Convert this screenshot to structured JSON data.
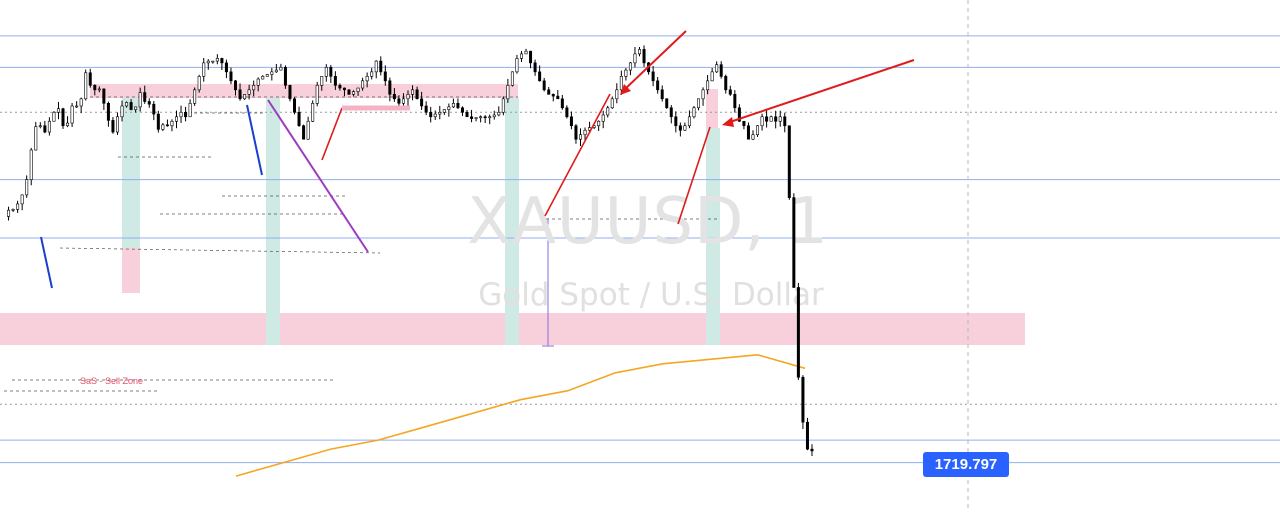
{
  "watermark": {
    "symbol": "XAUUSD, 1",
    "description": "Gold Spot / U.S. Dollar"
  },
  "annotations": {
    "zone_label": "Sell Zone",
    "zone_prefix": "SaS"
  },
  "last_price": "1719.797",
  "colors": {
    "candle": "#000000",
    "level_line": "#90aff0",
    "supply_zone": "#f8d0dc",
    "vertical_band": "#cfe9e4",
    "ma_line": "#f5a623",
    "arrow": "#e01b1b",
    "price_tag": "#2962ff",
    "diag_purple": "#9c3cc0",
    "diag_blue": "#1a3fcf"
  },
  "chart_data": {
    "type": "candlestick",
    "symbol": "XAUUSD",
    "timeframe": "1",
    "title": "XAUUSD, 1",
    "subtitle": "Gold Spot / U.S. Dollar",
    "last_price": 1719.797,
    "price_path": [
      1745.9,
      1746.6,
      1746.7,
      1747.3,
      1748.3,
      1750.0,
      1753.3,
      1755.9,
      1756.0,
      1755.3,
      1756.5,
      1757.5,
      1757.9,
      1756.0,
      1756.3,
      1758.2,
      1758.2,
      1759.0,
      1761.9,
      1760.5,
      1760.0,
      1760.1,
      1758.5,
      1756.6,
      1755.3,
      1757.0,
      1758.2,
      1758.6,
      1757.8,
      1758.1,
      1759.7,
      1758.7,
      1758.4,
      1757.3,
      1755.6,
      1756.1,
      1756.0,
      1756.5,
      1757.0,
      1757.5,
      1757.0,
      1758.5,
      1760.0,
      1761.5,
      1763.0,
      1763.2,
      1763.2,
      1763.5,
      1763.0,
      1762.0,
      1761.0,
      1760.0,
      1759.0,
      1759.5,
      1760.0,
      1760.5,
      1761.2,
      1761.5,
      1761.7,
      1762.0,
      1762.2,
      1762.5,
      1760.5,
      1759.0,
      1757.5,
      1756.0,
      1754.5,
      1756.5,
      1758.5,
      1760.5,
      1761.5,
      1762.5,
      1761.5,
      1760.5,
      1760.2,
      1760.0,
      1759.5,
      1759.8,
      1760.2,
      1761.0,
      1761.5,
      1762.0,
      1763.2,
      1762.0,
      1761.0,
      1759.5,
      1759.0,
      1758.5,
      1759.0,
      1759.5,
      1760.0,
      1759.0,
      1758.2,
      1757.5,
      1757.0,
      1757.3,
      1757.5,
      1757.8,
      1758.1,
      1758.5,
      1758.0,
      1757.5,
      1757.0,
      1756.8,
      1756.9,
      1757.0,
      1756.9,
      1757.0,
      1757.2,
      1757.5,
      1759.0,
      1760.5,
      1762.0,
      1763.5,
      1764.0,
      1764.3,
      1763.0,
      1762.0,
      1761.0,
      1760.0,
      1759.5,
      1759.3,
      1759.0,
      1758.0,
      1757.0,
      1756.0,
      1754.5,
      1755.0,
      1755.5,
      1755.8,
      1756.0,
      1756.5,
      1757.2,
      1758.0,
      1759.0,
      1760.0,
      1761.5,
      1762.2,
      1763.0,
      1764.0,
      1764.5,
      1763.0,
      1762.0,
      1761.0,
      1760.0,
      1759.0,
      1758.0,
      1757.0,
      1756.0,
      1755.5,
      1756.0,
      1757.0,
      1758.0,
      1759.0,
      1760.0,
      1761.0,
      1762.0,
      1762.8,
      1761.5,
      1760.0,
      1759.5,
      1758.0,
      1756.5,
      1756.0,
      1754.5,
      1755.0,
      1756.0,
      1757.0,
      1756.5,
      1757.0,
      1756.5,
      1757.0,
      1756.0,
      1748.0,
      1738.0,
      1728.0,
      1723.0,
      1720.0,
      1719.8
    ],
    "ylim": [
      1713,
      1770
    ],
    "horizontal_levels": [
      1766.0,
      1762.5,
      1750.0,
      1743.5,
      1721.0,
      1718.5
    ],
    "dotted_levels": [
      1757.5,
      1725.0
    ],
    "supply_zones": [
      {
        "low": 1743.5,
        "high": 1746.0,
        "label": ""
      },
      {
        "low": 1761.5,
        "high": 1762.5,
        "label": ""
      }
    ],
    "moving_average": [
      1717.0,
      1718.5,
      1720.0,
      1721.0,
      1722.5,
      1724.0,
      1725.5,
      1726.5,
      1728.5,
      1729.5,
      1730.0,
      1730.5,
      1729.0
    ],
    "arrows": 2
  }
}
